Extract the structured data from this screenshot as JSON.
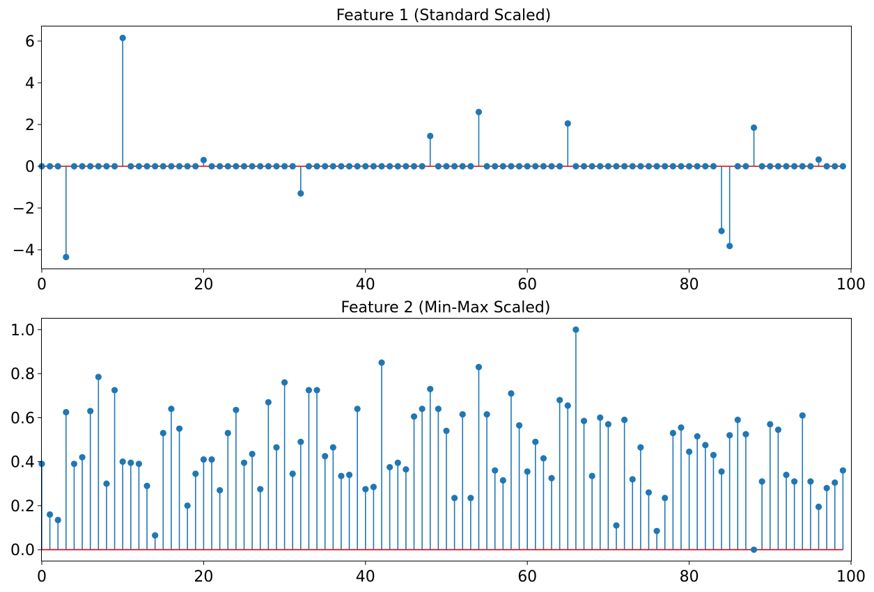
{
  "chart_data": [
    {
      "type": "stem",
      "title": "Feature 1 (Standard Scaled)",
      "xlabel": "",
      "ylabel": "",
      "xlim": [
        0,
        100
      ],
      "ylim": [
        -4.9,
        6.7
      ],
      "xticks": [
        0,
        20,
        40,
        60,
        80,
        100
      ],
      "xtick_labels": [
        "0",
        "20",
        "40",
        "60",
        "80",
        "100"
      ],
      "yticks": [
        -4,
        -2,
        0,
        2,
        4,
        6
      ],
      "ytick_labels": [
        "−4",
        "−2",
        "0",
        "2",
        "4",
        "6"
      ],
      "grid": false,
      "colors": {
        "stem": "#1f77b4",
        "baseline": "#d62728"
      },
      "x": [
        0,
        1,
        2,
        3,
        4,
        5,
        6,
        7,
        8,
        9,
        10,
        11,
        12,
        13,
        14,
        15,
        16,
        17,
        18,
        19,
        20,
        21,
        22,
        23,
        24,
        25,
        26,
        27,
        28,
        29,
        30,
        31,
        32,
        33,
        34,
        35,
        36,
        37,
        38,
        39,
        40,
        41,
        42,
        43,
        44,
        45,
        46,
        47,
        48,
        49,
        50,
        51,
        52,
        53,
        54,
        55,
        56,
        57,
        58,
        59,
        60,
        61,
        62,
        63,
        64,
        65,
        66,
        67,
        68,
        69,
        70,
        71,
        72,
        73,
        74,
        75,
        76,
        77,
        78,
        79,
        80,
        81,
        82,
        83,
        84,
        85,
        86,
        87,
        88,
        89,
        90,
        91,
        92,
        93,
        94,
        95,
        96,
        97,
        98,
        99
      ],
      "values": [
        0,
        0,
        0,
        -4.35,
        0,
        0,
        0,
        0,
        0,
        0,
        6.15,
        0,
        0,
        0,
        0,
        0,
        0,
        0,
        0,
        0,
        0.3,
        0,
        0,
        0,
        0,
        0,
        0,
        0,
        0,
        0,
        0,
        0,
        -1.3,
        0,
        0,
        0,
        0,
        0,
        0,
        0,
        0,
        0,
        0,
        0,
        0,
        0,
        0,
        0,
        1.45,
        0,
        0,
        0,
        0,
        0,
        2.6,
        0,
        0,
        0,
        0,
        0,
        0,
        0,
        0,
        0,
        0,
        2.05,
        0,
        0,
        0,
        0,
        0,
        0,
        0,
        0,
        0,
        0,
        0,
        0,
        0,
        0,
        0,
        0,
        0,
        0,
        -3.1,
        -3.82,
        0,
        0,
        1.85,
        0,
        0,
        0,
        0,
        0,
        0,
        0,
        0.32,
        0,
        0,
        0
      ]
    },
    {
      "type": "stem",
      "title": "Feature 2 (Min-Max Scaled)",
      "xlabel": "",
      "ylabel": "",
      "xlim": [
        0,
        100
      ],
      "ylim": [
        -0.05,
        1.05
      ],
      "xticks": [
        0,
        20,
        40,
        60,
        80,
        100
      ],
      "xtick_labels": [
        "0",
        "20",
        "40",
        "60",
        "80",
        "100"
      ],
      "yticks": [
        0,
        0.2,
        0.4,
        0.6,
        0.8,
        1.0
      ],
      "ytick_labels": [
        "0.0",
        "0.2",
        "0.4",
        "0.6",
        "0.8",
        "1.0"
      ],
      "grid": false,
      "colors": {
        "stem": "#1f77b4",
        "baseline": "#d62728"
      },
      "x": [
        0,
        1,
        2,
        3,
        4,
        5,
        6,
        7,
        8,
        9,
        10,
        11,
        12,
        13,
        14,
        15,
        16,
        17,
        18,
        19,
        20,
        21,
        22,
        23,
        24,
        25,
        26,
        27,
        28,
        29,
        30,
        31,
        32,
        33,
        34,
        35,
        36,
        37,
        38,
        39,
        40,
        41,
        42,
        43,
        44,
        45,
        46,
        47,
        48,
        49,
        50,
        51,
        52,
        53,
        54,
        55,
        56,
        57,
        58,
        59,
        60,
        61,
        62,
        63,
        64,
        65,
        66,
        67,
        68,
        69,
        70,
        71,
        72,
        73,
        74,
        75,
        76,
        77,
        78,
        79,
        80,
        81,
        82,
        83,
        84,
        85,
        86,
        87,
        88,
        89,
        90,
        91,
        92,
        93,
        94,
        95,
        96,
        97,
        98,
        99
      ],
      "values": [
        0.39,
        0.16,
        0.135,
        0.625,
        0.39,
        0.42,
        0.63,
        0.785,
        0.3,
        0.725,
        0.4,
        0.395,
        0.39,
        0.29,
        0.065,
        0.53,
        0.64,
        0.55,
        0.2,
        0.345,
        0.41,
        0.41,
        0.27,
        0.53,
        0.635,
        0.395,
        0.435,
        0.275,
        0.67,
        0.465,
        0.76,
        0.345,
        0.49,
        0.725,
        0.725,
        0.425,
        0.465,
        0.335,
        0.34,
        0.64,
        0.275,
        0.285,
        0.85,
        0.375,
        0.395,
        0.365,
        0.605,
        0.64,
        0.73,
        0.64,
        0.54,
        0.235,
        0.615,
        0.235,
        0.83,
        0.615,
        0.36,
        0.315,
        0.71,
        0.565,
        0.355,
        0.49,
        0.415,
        0.325,
        0.68,
        0.655,
        1.0,
        0.585,
        0.335,
        0.6,
        0.57,
        0.11,
        0.59,
        0.32,
        0.465,
        0.26,
        0.085,
        0.235,
        0.53,
        0.555,
        0.445,
        0.515,
        0.475,
        0.43,
        0.355,
        0.52,
        0.59,
        0.525,
        0.0,
        0.31,
        0.57,
        0.545,
        0.34,
        0.31,
        0.61,
        0.31,
        0.195,
        0.28,
        0.305,
        0.36
      ]
    }
  ]
}
